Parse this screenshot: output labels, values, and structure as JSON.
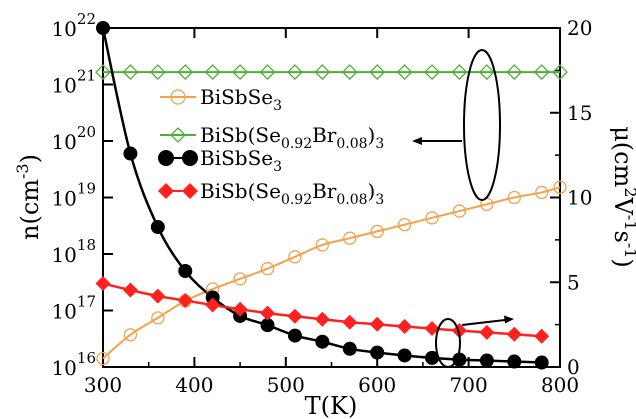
{
  "chart_data": {
    "type": "scatter",
    "title": "",
    "xlabel": "T(K)",
    "ylabel_left": "n(cm^-3)",
    "ylabel_right": "μ(cm^2V^-1s^-1)",
    "x_range": [
      300,
      800
    ],
    "y_left_range": [
      1e+16,
      1e+22
    ],
    "y_left_scale": "log",
    "y_right_range": [
      0,
      20
    ],
    "x_ticks": [
      "300",
      "400",
      "500",
      "600",
      "700",
      "800"
    ],
    "y_left_ticks": [
      {
        "base": "10",
        "exp": "16"
      },
      {
        "base": "10",
        "exp": "17"
      },
      {
        "base": "10",
        "exp": "18"
      },
      {
        "base": "10",
        "exp": "19"
      },
      {
        "base": "10",
        "exp": "20"
      },
      {
        "base": "10",
        "exp": "21"
      },
      {
        "base": "10",
        "exp": "22"
      }
    ],
    "y_right_ticks": [
      "0",
      "5",
      "10",
      "15",
      "20"
    ],
    "grid": false,
    "legend_position": "upper-left",
    "series": [
      {
        "name": "BiSbSe3",
        "axis": "right",
        "marker": "open-circle",
        "color": "#f5a04a",
        "x": [
          300,
          330,
          360,
          390,
          420,
          450,
          480,
          510,
          540,
          570,
          600,
          630,
          660,
          690,
          720,
          750,
          780,
          800
        ],
        "y": [
          0.5,
          1.9,
          2.9,
          3.9,
          4.6,
          5.2,
          5.8,
          6.5,
          7.2,
          7.6,
          8.0,
          8.4,
          8.8,
          9.2,
          9.6,
          10.0,
          10.3,
          10.6
        ]
      },
      {
        "name": "BiSb(Se0.92Br0.08)3",
        "axis": "right",
        "marker": "open-diamond",
        "color": "#4db035",
        "x": [
          300,
          330,
          360,
          390,
          420,
          450,
          480,
          510,
          540,
          570,
          600,
          630,
          660,
          690,
          720,
          750,
          780,
          800
        ],
        "y": [
          17.4,
          17.4,
          17.4,
          17.4,
          17.4,
          17.4,
          17.4,
          17.4,
          17.4,
          17.4,
          17.4,
          17.4,
          17.4,
          17.4,
          17.4,
          17.4,
          17.4,
          17.4
        ]
      },
      {
        "name": "BiSbSe3",
        "axis": "left",
        "marker": "filled-circle",
        "color": "#000000",
        "x": [
          300,
          330,
          360,
          390,
          420,
          450,
          480,
          510,
          540,
          570,
          600,
          630,
          660,
          690,
          720,
          750,
          780
        ],
        "y": [
          1e+22,
          6e+19,
          3e+18,
          5e+17,
          1.7e+17,
          8e+16,
          5.5e+16,
          3.6e+16,
          2.8e+16,
          2.1e+16,
          1.8e+16,
          1.6e+16,
          1.45e+16,
          1.35e+16,
          1.3e+16,
          1.25e+16,
          1.2e+16
        ]
      },
      {
        "name": "BiSb(Se0.92Br0.08)3",
        "axis": "left",
        "marker": "filled-diamond",
        "color": "#ff2020",
        "x": [
          300,
          330,
          360,
          390,
          420,
          450,
          480,
          510,
          540,
          570,
          600,
          630,
          660,
          690,
          720,
          750,
          780
        ],
        "y": [
          3e+17,
          2.3e+17,
          1.8e+17,
          1.5e+17,
          1.25e+17,
          1.05e+17,
          9e+16,
          7.9e+16,
          7e+16,
          6.2e+16,
          5.7e+16,
          5.2e+16,
          4.8e+16,
          4.4e+16,
          4.1e+16,
          3.8e+16,
          3.5e+16
        ]
      }
    ],
    "legend": [
      {
        "base": "BiSbSe",
        "sub1": "3",
        "mid": "",
        "sub2": "",
        "tail": "",
        "sub3": ""
      },
      {
        "base": "BiSb(Se",
        "sub1": "0.92",
        "mid": "Br",
        "sub2": "0.08",
        "tail": ")",
        "sub3": "3"
      },
      {
        "base": "BiSbSe",
        "sub1": "3",
        "mid": "",
        "sub2": "",
        "tail": "",
        "sub3": ""
      },
      {
        "base": "BiSb(Se",
        "sub1": "0.92",
        "mid": "Br",
        "sub2": "0.08",
        "tail": ")",
        "sub3": "3"
      }
    ],
    "annotations": [
      {
        "type": "ellipse-arrow",
        "target": "right axis (mobility curves)"
      },
      {
        "type": "ellipse-arrow",
        "target": "right axis (mobility at high T)"
      }
    ]
  }
}
